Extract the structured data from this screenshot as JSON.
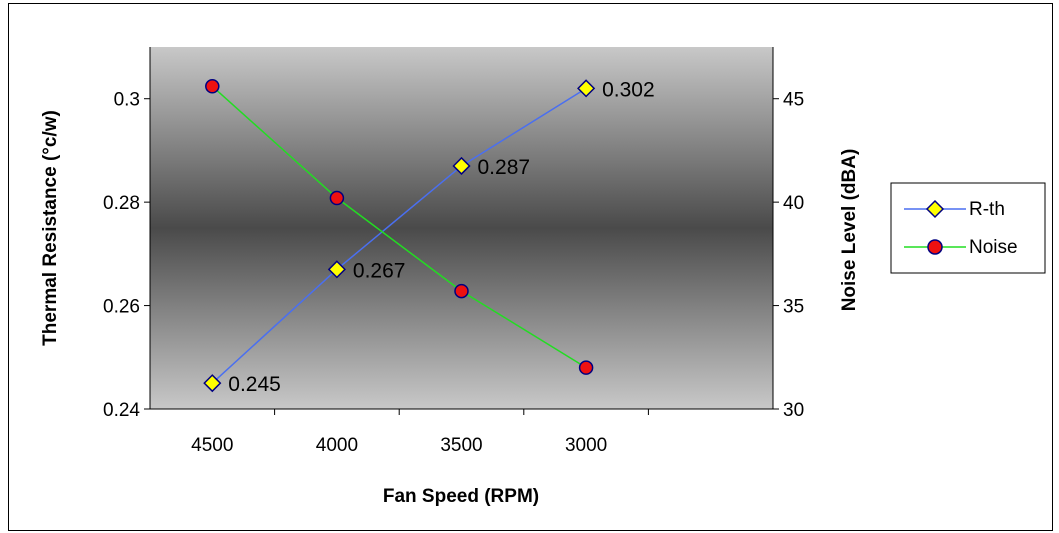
{
  "chart_data": {
    "type": "line",
    "categories": [
      "4500",
      "4000",
      "3500",
      "3000"
    ],
    "xlabel": "Fan Speed (RPM)",
    "ylabel_left": "Thermal Resistance (°c/w)",
    "ylabel_right": "Noise Level (dBA)",
    "ylim_left": [
      0.24,
      0.31
    ],
    "ylim_right": [
      30,
      47.5
    ],
    "yticks_left": [
      "0.24",
      "0.26",
      "0.28",
      "0.3"
    ],
    "yticks_right": [
      "30",
      "35",
      "40",
      "45"
    ],
    "legend_position": "right",
    "background": "vertical gradient, light gray at edges, dark gray in middle",
    "series": [
      {
        "name": "R-th",
        "axis": "left",
        "values": [
          0.245,
          0.267,
          0.287,
          0.302
        ],
        "data_labels": [
          "0.245",
          "0.267",
          "0.287",
          "0.302"
        ],
        "line_color": "#4a6ff0",
        "marker": "diamond",
        "marker_fill": "#ffff00",
        "marker_stroke": "#000080"
      },
      {
        "name": "Noise",
        "axis": "right",
        "values": [
          45.6,
          40.2,
          35.7,
          32.0
        ],
        "line_color": "#22dd22",
        "marker": "circle",
        "marker_fill": "#ee1111",
        "marker_stroke": "#000080"
      }
    ]
  }
}
